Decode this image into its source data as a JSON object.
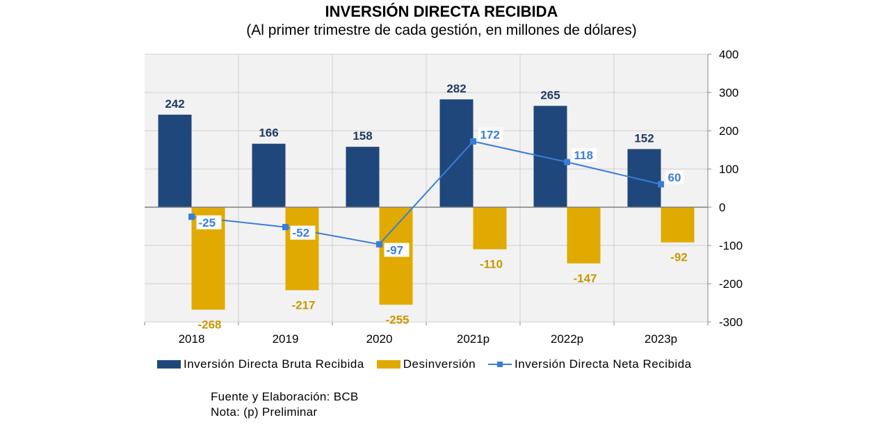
{
  "chart_data": {
    "type": "bar",
    "title": "INVERSIÓN DIRECTA RECIBIDA",
    "subtitle": "(Al primer trimestre de cada gestión, en millones de dólares)",
    "categories": [
      "2018",
      "2019",
      "2020",
      "2021p",
      "2022p",
      "2023p"
    ],
    "series": [
      {
        "name": "Inversión Directa Bruta Recibida",
        "kind": "bar",
        "color": "#1f477b",
        "values": [
          242,
          166,
          158,
          282,
          265,
          152
        ]
      },
      {
        "name": "Desinversión",
        "kind": "bar",
        "color": "#e0aa00",
        "values": [
          -268,
          -217,
          -255,
          -110,
          -147,
          -92
        ]
      },
      {
        "name": "Inversión Directa Neta Recibida",
        "kind": "line",
        "color": "#3a7dd8",
        "values": [
          -25,
          -52,
          -97,
          172,
          118,
          60
        ]
      }
    ],
    "ylim": [
      -300,
      400
    ],
    "yticks": [
      400,
      300,
      200,
      100,
      0,
      -100,
      -200,
      -300
    ],
    "grid": true,
    "legend": "bottom"
  },
  "footer": {
    "source": "Fuente y Elaboración: BCB",
    "note": "Nota: (p) Preliminar"
  }
}
